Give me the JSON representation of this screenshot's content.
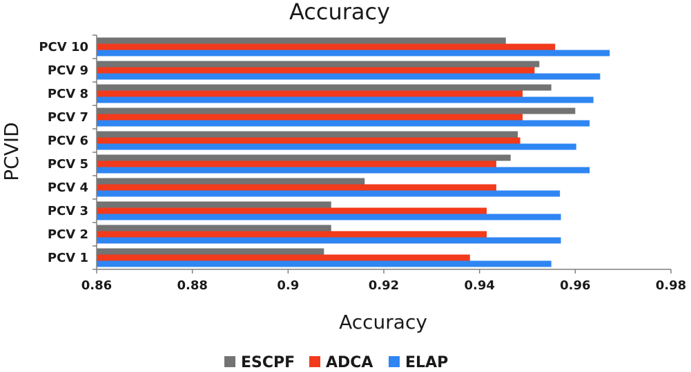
{
  "chart_data": {
    "type": "bar",
    "orientation": "horizontal",
    "title": "Accuracy",
    "xlabel": "Accuracy",
    "ylabel": "PCVID",
    "categories": [
      "PCV 1",
      "PCV 2",
      "PCV 3",
      "PCV 4",
      "PCV 5",
      "PCV 6",
      "PCV 7",
      "PCV 8",
      "PCV 9",
      "PCV 10"
    ],
    "xlim": [
      0.86,
      0.98
    ],
    "xticks": [
      "0.86",
      "0.88",
      "0.9",
      "0.92",
      "0.94",
      "0.96",
      "0.98"
    ],
    "grid": false,
    "legend_position": "bottom",
    "series": [
      {
        "name": "ESCPF",
        "color": "#737373",
        "values": [
          0.9075,
          0.909,
          0.909,
          0.916,
          0.9465,
          0.948,
          0.96,
          0.955,
          0.9525,
          0.9455
        ]
      },
      {
        "name": "ADCA",
        "color": "#f23a1d",
        "values": [
          0.938,
          0.9415,
          0.9415,
          0.9435,
          0.9435,
          0.9485,
          0.949,
          0.949,
          0.9515,
          0.9558
        ]
      },
      {
        "name": "ELAP",
        "color": "#2f86f2",
        "values": [
          0.955,
          0.957,
          0.957,
          0.9568,
          0.963,
          0.9602,
          0.963,
          0.9638,
          0.9652,
          0.9672
        ]
      }
    ]
  }
}
